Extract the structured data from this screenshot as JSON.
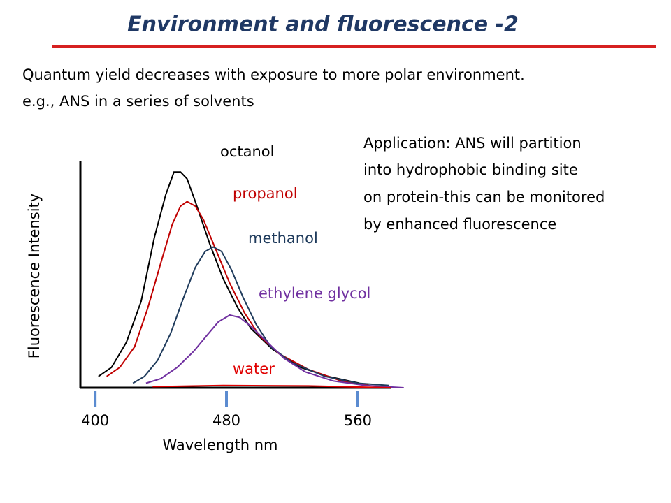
{
  "header": {
    "title": "Environment and fluorescence -2"
  },
  "intro": {
    "lines": [
      "Quantum yield decreases with exposure to more polar environment.",
      "e.g., ANS in a series of solvents"
    ]
  },
  "application": {
    "lines": [
      "Application: ANS will partition",
      "into hydrophobic binding site",
      "on protein-this can be monitored",
      "by enhanced fluorescence"
    ]
  },
  "chart_data": {
    "type": "line",
    "xlabel": "Wavelength nm",
    "ylabel": "Fluorescence Intensity",
    "xlim": [
      391,
      589
    ],
    "xticks": [
      400,
      480,
      560
    ],
    "ylim": [
      0,
      100
    ],
    "series": [
      {
        "name": "octanol",
        "color": "#000000",
        "x": [
          402,
          410,
          419,
          428,
          436,
          443,
          448,
          452,
          456,
          461,
          470,
          478,
          487,
          495,
          508,
          525,
          542,
          561
        ],
        "values": [
          5,
          9,
          20,
          38,
          66,
          85,
          95,
          95,
          92,
          82,
          63,
          48,
          35,
          26,
          17,
          9,
          5,
          2
        ]
      },
      {
        "name": "propanol",
        "color": "#c00000",
        "x": [
          407,
          415,
          424,
          432,
          440,
          447,
          452,
          456,
          461,
          466,
          474,
          482,
          491,
          500,
          512,
          530,
          550,
          567
        ],
        "values": [
          5,
          9,
          18,
          35,
          55,
          72,
          80,
          82,
          80,
          74,
          60,
          46,
          33,
          23,
          15,
          8,
          3,
          1
        ]
      },
      {
        "name": "methanol",
        "color": "#1f3b5c",
        "x": [
          423,
          430,
          438,
          446,
          454,
          461,
          467,
          472,
          477,
          483,
          490,
          498,
          507,
          520,
          540,
          560,
          579
        ],
        "values": [
          2,
          5,
          12,
          24,
          40,
          53,
          60,
          62,
          60,
          52,
          40,
          28,
          18,
          11,
          5,
          2,
          1
        ]
      },
      {
        "name": "ethylene glycol",
        "color": "#7030a0",
        "x": [
          431,
          440,
          450,
          460,
          468,
          475,
          482,
          488,
          495,
          505,
          515,
          528,
          545,
          565,
          588
        ],
        "values": [
          2,
          4,
          9,
          16,
          23,
          29,
          32,
          31,
          27,
          20,
          13,
          7,
          3,
          1,
          0
        ]
      },
      {
        "name": "water",
        "color": "#e00000",
        "x": [
          435,
          478,
          530,
          580
        ],
        "values": [
          0.5,
          1,
          0.8,
          0
        ]
      }
    ]
  }
}
